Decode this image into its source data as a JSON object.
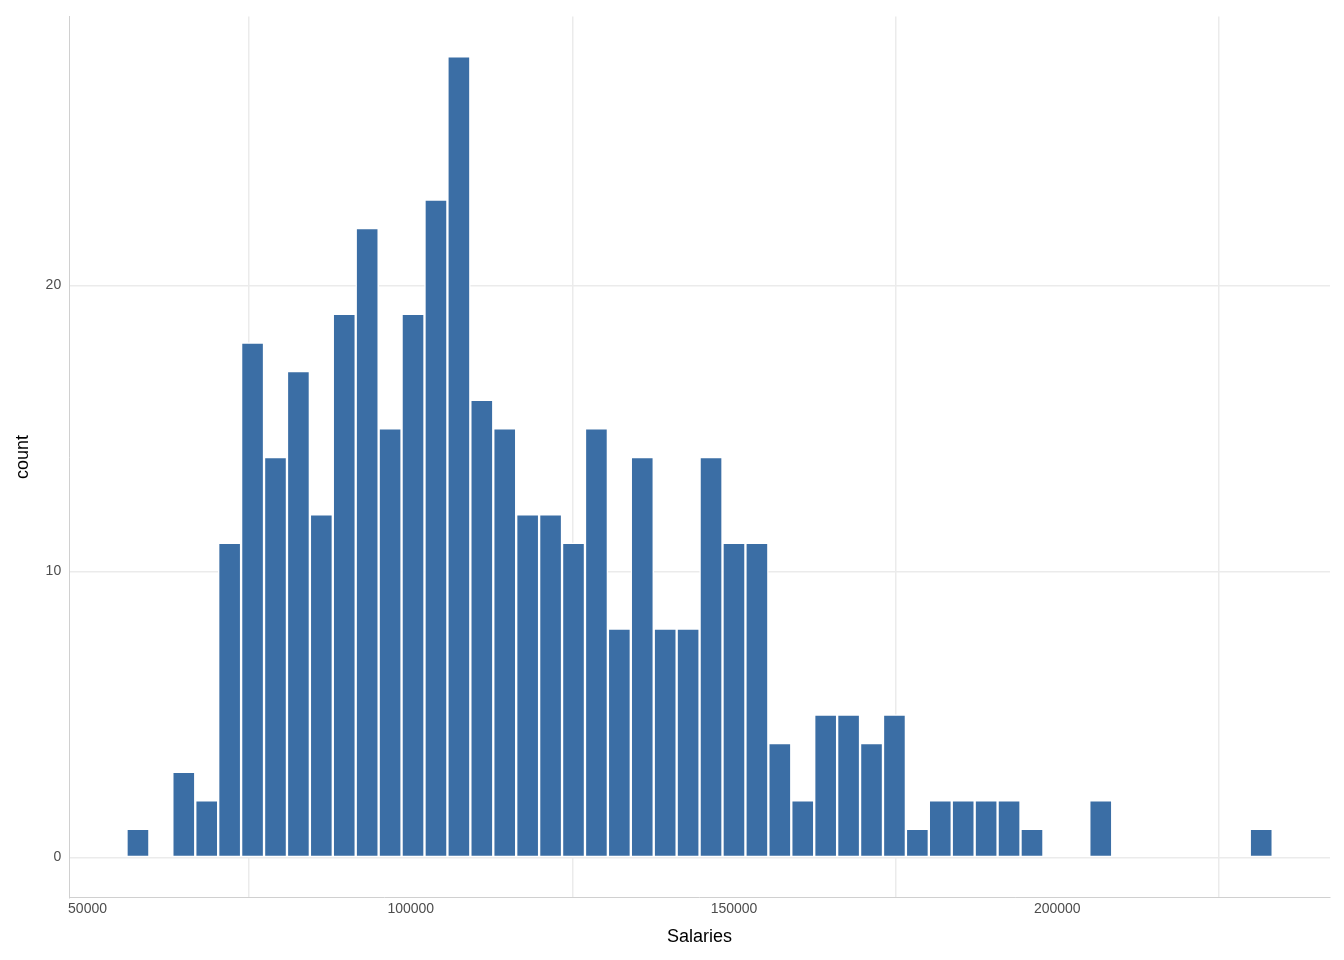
{
  "chart_data": {
    "type": "histogram",
    "x_label": "Salaries",
    "y_label": "count",
    "bins": [
      56027,
      59573,
      63119,
      66665,
      70211,
      73757,
      77303,
      80849,
      84395,
      87941,
      91487,
      95033,
      98579,
      102125,
      105671,
      109217,
      112763,
      116309,
      119855,
      123401,
      126947,
      130493,
      134039,
      137585,
      141131,
      144677,
      148223,
      151769,
      155315,
      158861,
      162407,
      165953,
      169499,
      173045,
      176591,
      180137,
      183683,
      187229,
      190775,
      194321,
      197867,
      201413,
      204959,
      208505,
      212051,
      215597,
      219143,
      222689,
      226235,
      229781,
      233327
    ],
    "values": [
      1,
      0,
      3,
      2,
      11,
      18,
      14,
      17,
      12,
      19,
      22,
      15,
      19,
      23,
      28,
      16,
      15,
      12,
      12,
      11,
      15,
      8,
      14,
      8,
      8,
      14,
      11,
      11,
      4,
      2,
      5,
      5,
      4,
      5,
      1,
      2,
      2,
      2,
      2,
      1,
      0,
      0,
      2,
      0,
      0,
      0,
      0,
      0,
      0,
      1
    ],
    "color": "#3b6ea5",
    "xlim": [
      47162,
      242192
    ],
    "xticks": [
      50000,
      100000,
      150000,
      200000
    ],
    "ylim": [
      -1.4,
      29.4
    ],
    "yticks": [
      0,
      10,
      20
    ],
    "grid": true
  }
}
